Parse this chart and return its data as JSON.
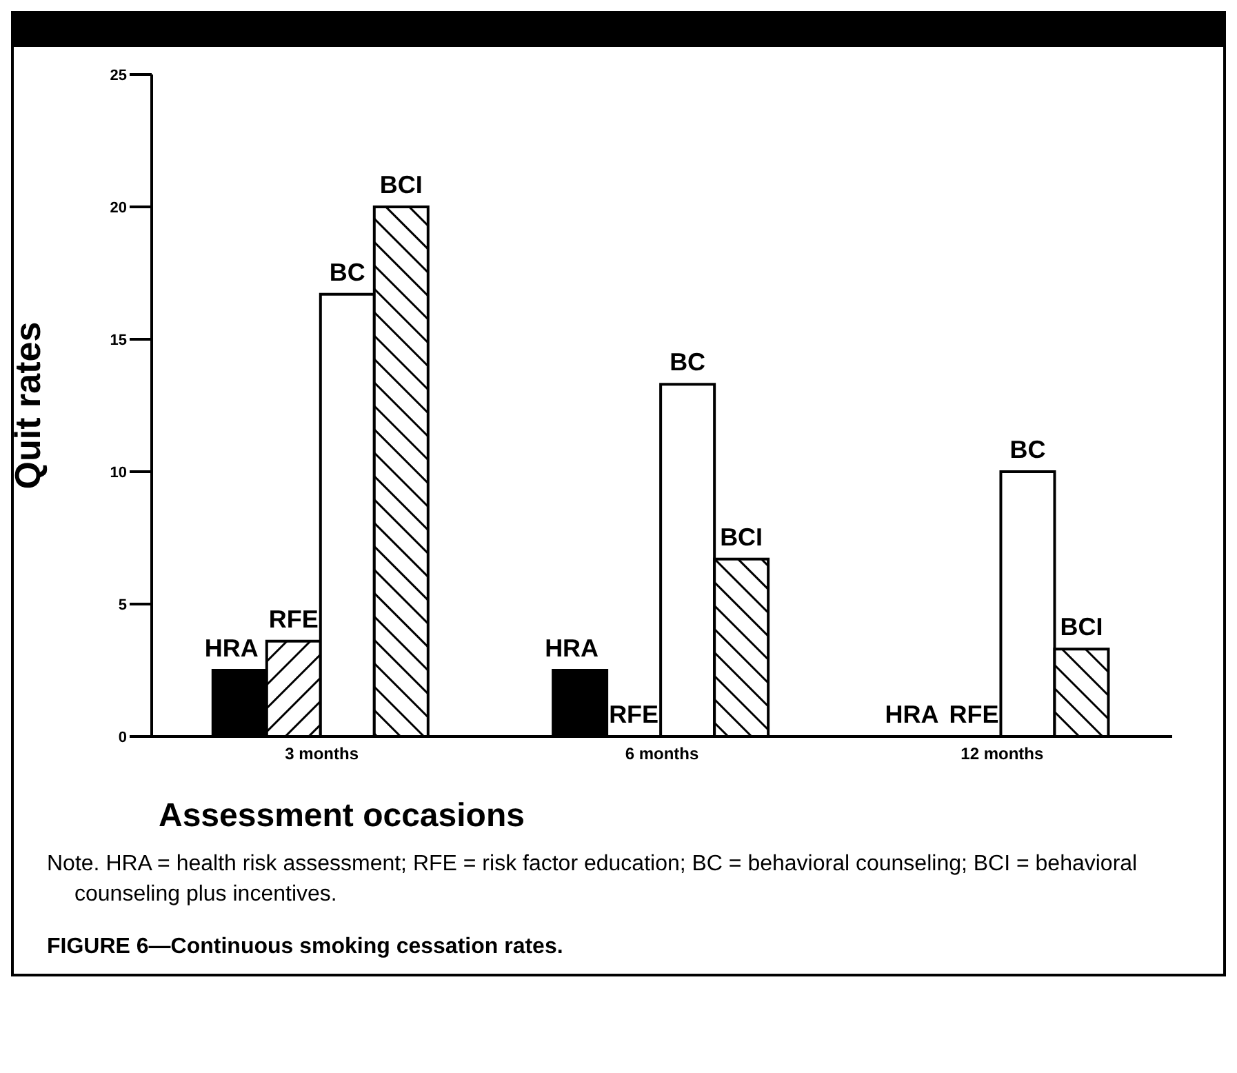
{
  "chart_data": {
    "type": "bar",
    "title": "FIGURE 6—Continuous smoking cessation rates.",
    "xlabel": "Assessment occasions",
    "ylabel": "Quit rates",
    "categories": [
      "3 months",
      "6 months",
      "12 months"
    ],
    "series": [
      {
        "name": "HRA",
        "color": "#000000",
        "values": [
          2.5,
          2.5,
          0
        ]
      },
      {
        "name": "RFE",
        "color": "#000000",
        "values": [
          3.6,
          0,
          0
        ]
      },
      {
        "name": "BC",
        "color": "#ffffff",
        "values": [
          16.7,
          13.3,
          10
        ]
      },
      {
        "name": "BCI",
        "color": "#000000",
        "values": [
          20,
          6.7,
          3.3
        ]
      }
    ],
    "ylim": [
      0,
      25
    ],
    "yticks": [
      0,
      5,
      10,
      15,
      20,
      25
    ],
    "grid": false,
    "legend": false,
    "annotations": [
      "Note. HRA = health risk assessment; RFE = risk factor education; BC = behavioral counseling; BCI = behavioral counseling plus incentives."
    ]
  }
}
